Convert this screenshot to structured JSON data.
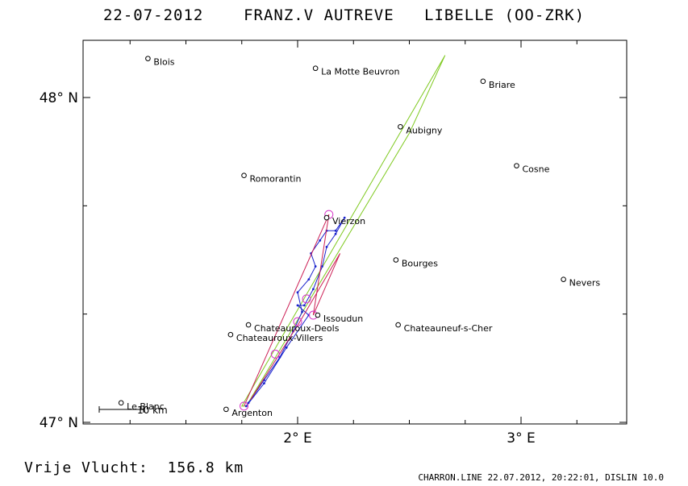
{
  "header": {
    "date": "22-07-2012",
    "pilot": "FRANZ.V AUTREVE",
    "glider": "LIBELLE (OO-ZRK)"
  },
  "map": {
    "axes": {
      "lon_ticks": [
        {
          "value": 2,
          "label": "2° E"
        },
        {
          "value": 3,
          "label": "3° E"
        }
      ],
      "lat_ticks": [
        {
          "value": 48,
          "label": "48° N"
        },
        {
          "value": 47,
          "label": "47° N"
        }
      ]
    },
    "scale_label": "10 km",
    "towns": [
      {
        "name": "Blois",
        "lon": 1.33,
        "lat": 48.12
      },
      {
        "name": "La Motte Beuvron",
        "lon": 2.08,
        "lat": 48.09
      },
      {
        "name": "Briare",
        "lon": 2.83,
        "lat": 48.05
      },
      {
        "name": "Aubigny",
        "lon": 2.46,
        "lat": 47.91
      },
      {
        "name": "Cosne",
        "lon": 2.98,
        "lat": 47.79
      },
      {
        "name": "Romorantin",
        "lon": 1.76,
        "lat": 47.76
      },
      {
        "name": "Vierzon",
        "lon": 2.13,
        "lat": 47.63
      },
      {
        "name": "Bourges",
        "lon": 2.44,
        "lat": 47.5
      },
      {
        "name": "Nevers",
        "lon": 3.19,
        "lat": 47.44
      },
      {
        "name": "Issoudun",
        "lon": 2.09,
        "lat": 47.33
      },
      {
        "name": "Chateauroux-Deols",
        "lon": 1.78,
        "lat": 47.3
      },
      {
        "name": "Chateauneuf-s-Cher",
        "lon": 2.45,
        "lat": 47.3
      },
      {
        "name": "Chateauroux-Villers",
        "lon": 1.7,
        "lat": 47.27
      },
      {
        "name": "Le Blanc",
        "lon": 1.21,
        "lat": 47.06
      },
      {
        "name": "Argenton",
        "lon": 1.68,
        "lat": 47.04
      }
    ],
    "task_polygon": [
      {
        "lon": 1.75,
        "lat": 47.05
      },
      {
        "lon": 2.66,
        "lat": 48.13
      },
      {
        "lon": 2.5,
        "lat": 47.89
      },
      {
        "lon": 1.77,
        "lat": 47.05
      }
    ],
    "flight_track": [
      {
        "lon": 1.78,
        "lat": 47.06
      },
      {
        "lon": 1.85,
        "lat": 47.13
      },
      {
        "lon": 1.92,
        "lat": 47.2
      },
      {
        "lon": 1.98,
        "lat": 47.28
      },
      {
        "lon": 2.02,
        "lat": 47.34
      },
      {
        "lon": 2.0,
        "lat": 47.4
      },
      {
        "lon": 2.05,
        "lat": 47.44
      },
      {
        "lon": 2.08,
        "lat": 47.48
      },
      {
        "lon": 2.06,
        "lat": 47.52
      },
      {
        "lon": 2.1,
        "lat": 47.56
      },
      {
        "lon": 2.13,
        "lat": 47.59
      },
      {
        "lon": 2.17,
        "lat": 47.59
      },
      {
        "lon": 2.21,
        "lat": 47.63
      },
      {
        "lon": 2.17,
        "lat": 47.58
      },
      {
        "lon": 2.13,
        "lat": 47.54
      },
      {
        "lon": 2.11,
        "lat": 47.48
      },
      {
        "lon": 2.07,
        "lat": 47.41
      },
      {
        "lon": 2.03,
        "lat": 47.36
      },
      {
        "lon": 2.0,
        "lat": 47.36
      },
      {
        "lon": 2.05,
        "lat": 47.33
      },
      {
        "lon": 1.95,
        "lat": 47.23
      },
      {
        "lon": 1.85,
        "lat": 47.12
      },
      {
        "lon": 1.77,
        "lat": 47.05
      }
    ],
    "optimised_route": [
      {
        "lon": 1.76,
        "lat": 47.05
      },
      {
        "lon": 2.14,
        "lat": 47.64
      },
      {
        "lon": 2.07,
        "lat": 47.33
      },
      {
        "lon": 2.19,
        "lat": 47.52
      },
      {
        "lon": 2.01,
        "lat": 47.31
      },
      {
        "lon": 1.79,
        "lat": 47.07
      }
    ],
    "turnpoints": [
      {
        "lon": 1.76,
        "lat": 47.05
      },
      {
        "lon": 2.14,
        "lat": 47.64
      },
      {
        "lon": 2.07,
        "lat": 47.33
      },
      {
        "lon": 2.04,
        "lat": 47.38
      },
      {
        "lon": 2.0,
        "lat": 47.31
      },
      {
        "lon": 1.9,
        "lat": 47.21
      }
    ],
    "colors": {
      "task": "#7ec91e",
      "track": "#1a22cc",
      "route": "#cc1f55",
      "turnpoint": "#d633c8"
    }
  },
  "distance": {
    "label": "Vrije Vlucht:",
    "value": "156.8 km"
  },
  "footer": "CHARRON.LINE 22.07.2012, 20:22:01, DISLIN 10.0"
}
